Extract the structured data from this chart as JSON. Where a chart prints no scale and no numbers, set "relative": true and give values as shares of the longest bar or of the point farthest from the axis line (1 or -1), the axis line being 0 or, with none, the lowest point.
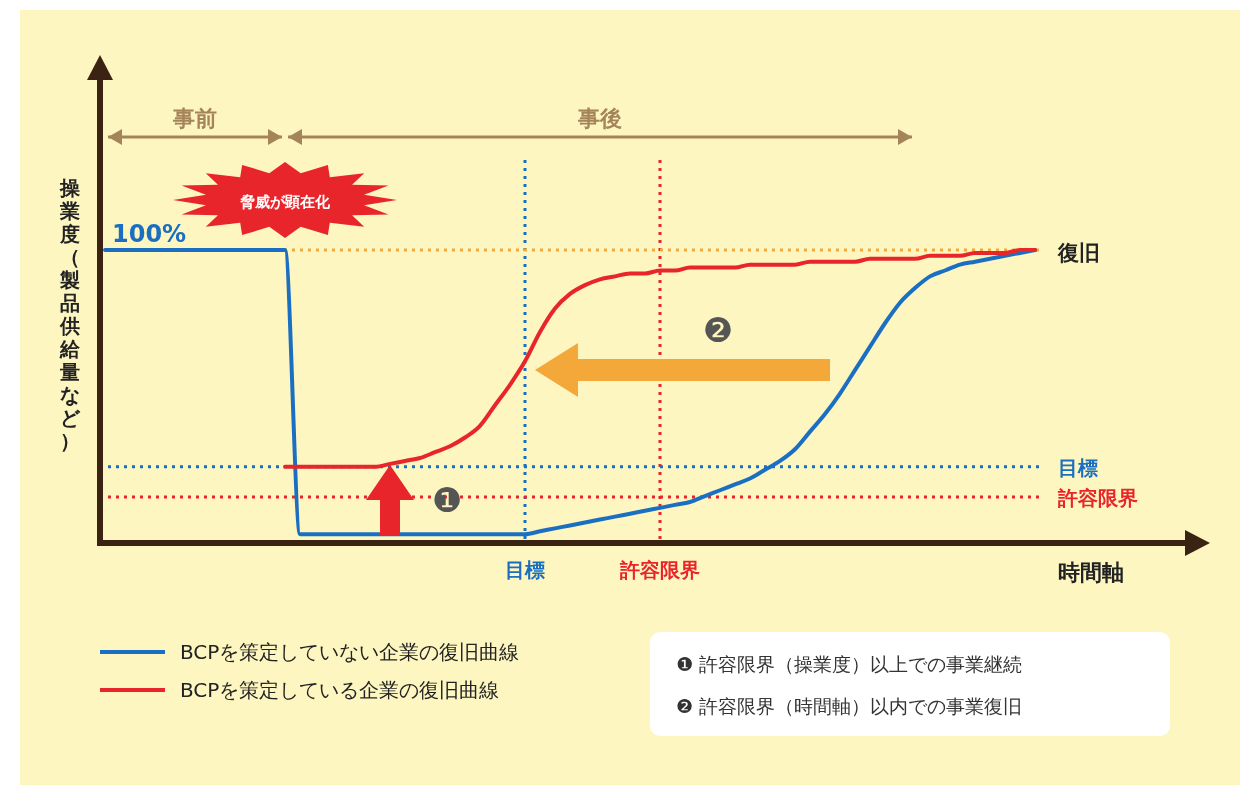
{
  "chart_data": {
    "type": "line",
    "relative": true,
    "xlabel": "時間軸",
    "ylabel": "操業度（製品供給量など）",
    "categories": [
      null,
      null,
      null,
      null,
      null,
      null,
      null,
      null,
      null,
      null,
      null,
      null,
      null,
      null,
      null,
      null,
      null,
      null,
      null,
      null,
      null,
      null,
      null,
      null,
      null,
      null,
      null,
      null,
      "目標",
      null,
      null,
      null,
      null,
      null,
      null,
      null,
      null,
      "許容限界",
      null,
      null,
      null,
      null,
      null,
      null,
      null,
      null,
      null,
      null,
      null,
      null,
      null,
      null,
      null,
      null,
      null,
      null,
      null,
      null,
      null,
      null,
      null,
      null,
      null,
      null,
      null,
      null,
      null,
      null,
      null,
      null,
      null,
      null,
      null
    ],
    "series": [
      {
        "name": "BCPを策定していない企業の復旧曲線",
        "color": "#1b6fc2",
        "values": [
          1,
          1,
          1,
          1,
          1,
          1,
          1,
          1,
          1,
          1,
          1,
          1,
          1,
          0.03,
          0.03,
          0.03,
          0.03,
          0.03,
          0.03,
          0.03,
          0.03,
          0.03,
          0.03,
          0.03,
          0.03,
          0.03,
          0.03,
          0.03,
          0.03,
          0.04,
          0.05,
          0.06,
          0.07,
          0.08,
          0.09,
          0.1,
          0.11,
          0.12,
          0.13,
          0.14,
          0.16,
          0.18,
          0.2,
          0.22,
          0.25,
          0.28,
          0.32,
          0.38,
          0.44,
          0.51,
          0.59,
          0.67,
          0.75,
          0.82,
          0.87,
          0.91,
          0.93,
          0.95,
          0.96,
          0.97,
          0.98,
          0.99,
          1,
          null,
          null,
          null,
          null,
          null,
          null,
          null,
          null,
          null,
          null
        ]
      },
      {
        "name": "BCPを策定している企業の復旧曲線",
        "color": "#e8252b",
        "values": [
          null,
          null,
          null,
          null,
          null,
          null,
          null,
          null,
          null,
          null,
          null,
          null,
          0.26,
          0.26,
          0.26,
          0.26,
          0.26,
          0.26,
          0.26,
          0.27,
          0.28,
          0.29,
          0.31,
          0.33,
          0.36,
          0.4,
          0.47,
          0.54,
          0.62,
          0.72,
          0.8,
          0.85,
          0.88,
          0.9,
          0.91,
          0.92,
          0.92,
          0.93,
          0.93,
          0.94,
          0.94,
          0.94,
          0.94,
          0.95,
          0.95,
          0.95,
          0.95,
          0.96,
          0.96,
          0.96,
          0.96,
          0.97,
          0.97,
          0.97,
          0.97,
          0.98,
          0.98,
          0.98,
          0.99,
          0.99,
          0.99,
          1,
          1,
          null,
          null,
          null,
          null,
          null,
          null,
          null,
          null,
          null,
          null
        ]
      }
    ],
    "ref_lines": [
      {
        "axis": "x",
        "value": "目標",
        "color": "#1b6fc2",
        "line_style": "dotted"
      },
      {
        "axis": "x",
        "value": "許容限界",
        "color": "#e8252b",
        "line_style": "dotted"
      },
      {
        "axis": "y",
        "value": 0.26,
        "label": "目標",
        "color": "#1b6fc2",
        "line_style": "dotted"
      },
      {
        "axis": "y",
        "value": 0.157,
        "label": "許容限界",
        "color": "#e8252b",
        "line_style": "dotted"
      },
      {
        "axis": "y",
        "value": 1,
        "label": null,
        "color": "#f5a83a",
        "line_style": "dotted"
      }
    ],
    "annotations": [
      "事前",
      "事後",
      "100%",
      "脅威が顕在化",
      "復旧",
      "❶",
      "❷",
      "❶ 許容限界（操業度）以上での事業継続",
      "❷ 許容限界（時間軸）以内での事業復旧"
    ],
    "legend": "bottom left"
  }
}
